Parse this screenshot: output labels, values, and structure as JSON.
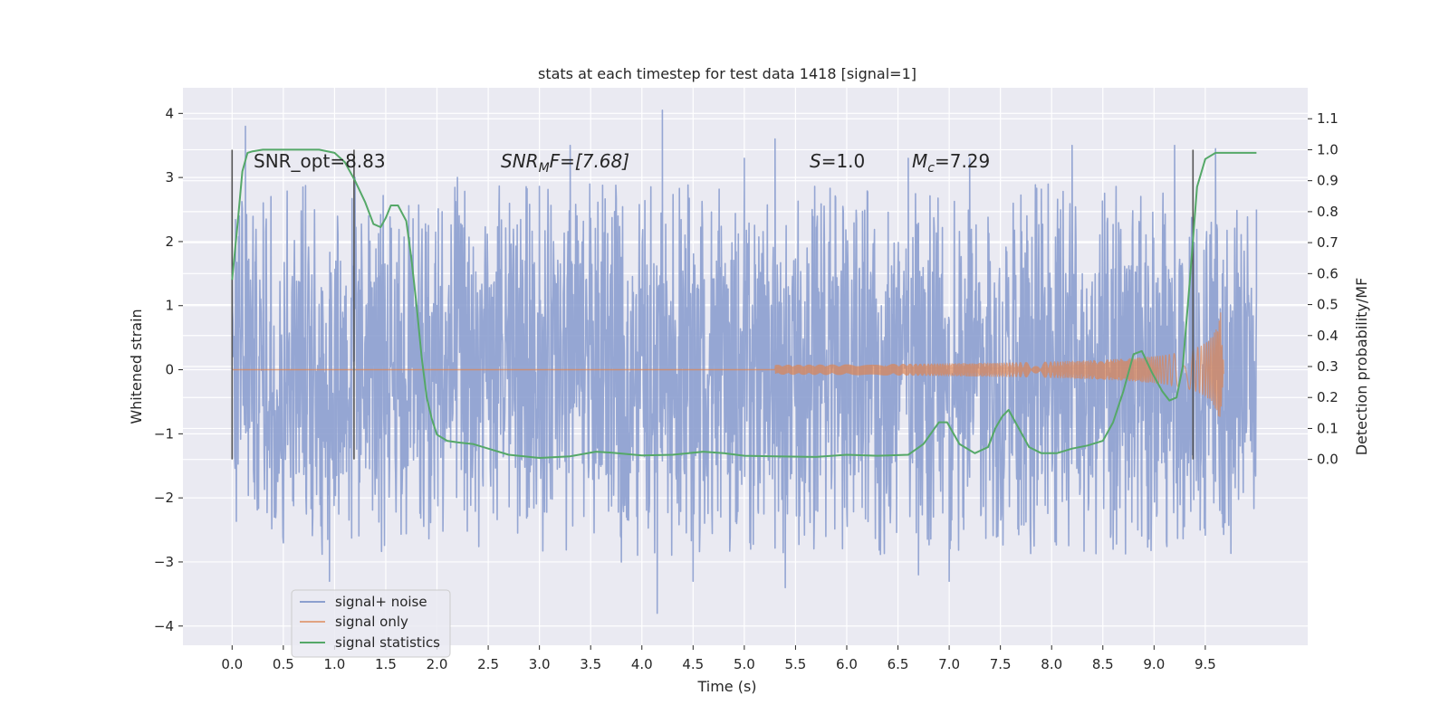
{
  "chart_data": {
    "type": "line",
    "title": "stats at each timestep for test data 1418 [signal=1]",
    "xlabel": "Time (s)",
    "ylabel": "Whitened strain",
    "ylabel_right": "Detection probability/MF",
    "xlim": [
      -0.48,
      10.5
    ],
    "ylim": [
      -4.3,
      4.4
    ],
    "ylim_right": [
      -0.6,
      1.2
    ],
    "x_ticks": [
      "0.0",
      "0.5",
      "1.0",
      "1.5",
      "2.0",
      "2.5",
      "3.0",
      "3.5",
      "4.0",
      "4.5",
      "5.0",
      "5.5",
      "6.0",
      "6.5",
      "7.0",
      "7.5",
      "8.0",
      "8.5",
      "9.0",
      "9.5"
    ],
    "y_ticks": [
      "−4",
      "−3",
      "−2",
      "−1",
      "0",
      "1",
      "2",
      "3",
      "4"
    ],
    "y_ticks_right": [
      "0.0",
      "0.1",
      "0.2",
      "0.3",
      "0.4",
      "0.5",
      "0.6",
      "0.7",
      "0.8",
      "0.9",
      "1.0",
      "1.1"
    ],
    "grid": true,
    "legend_position": "bottom-left",
    "colors": {
      "background": "#eaeaf2",
      "grid": "#ffffff",
      "noise": "#8c9fcf",
      "signal": "#dd8452",
      "stat": "#55a868",
      "vline": "#555555"
    },
    "annotations": {
      "snr_opt": "SNR_opt=8.83",
      "snr_mf_main": "SNR",
      "snr_mf_sub": "M",
      "snr_mf_rest": "F=[7.68]",
      "s_main": "S",
      "s_rest": "=1.0",
      "mc_main": "M",
      "mc_sub": "c",
      "mc_rest": "=7.29"
    },
    "vertical_lines": [
      0.0,
      1.19,
      9.38
    ],
    "series": [
      {
        "name": "signal+ noise",
        "kind": "noise",
        "x_range": [
          0.0,
          10.0
        ],
        "typical_range": [
          -1.9,
          1.9
        ],
        "peaks": [
          [
            0.13,
            3.8
          ],
          [
            0.95,
            -3.3
          ],
          [
            1.2,
            3.0
          ],
          [
            2.2,
            3.0
          ],
          [
            3.3,
            3.5
          ],
          [
            3.8,
            -3.0
          ],
          [
            4.2,
            4.05
          ],
          [
            4.15,
            -3.8
          ],
          [
            4.5,
            -3.3
          ],
          [
            5.0,
            3.3
          ],
          [
            5.3,
            3.6
          ],
          [
            5.4,
            -3.4
          ],
          [
            6.6,
            3.3
          ],
          [
            6.7,
            -3.2
          ],
          [
            7.0,
            -3.3
          ],
          [
            7.2,
            3.3
          ],
          [
            8.2,
            3.5
          ],
          [
            8.6,
            -2.8
          ],
          [
            9.2,
            3.5
          ],
          [
            9.45,
            -2.5
          ],
          [
            9.6,
            3.45
          ],
          [
            10.0,
            2.5
          ]
        ]
      },
      {
        "name": "signal only",
        "kind": "chirp",
        "x_range": [
          5.3,
          9.68
        ],
        "peak_time": 9.65,
        "peak_amplitude": 0.9
      },
      {
        "name": "signal statistics",
        "kind": "probability",
        "axis": "right",
        "x": [
          0.0,
          0.05,
          0.1,
          0.15,
          0.2,
          0.3,
          0.5,
          0.7,
          0.85,
          1.0,
          1.1,
          1.2,
          1.3,
          1.38,
          1.45,
          1.5,
          1.55,
          1.62,
          1.7,
          1.75,
          1.8,
          1.85,
          1.9,
          1.95,
          2.0,
          2.1,
          2.2,
          2.35,
          2.5,
          2.7,
          3.0,
          3.3,
          3.55,
          3.7,
          4.0,
          4.3,
          4.6,
          4.8,
          5.0,
          5.3,
          5.7,
          6.0,
          6.3,
          6.6,
          6.75,
          6.9,
          6.98,
          7.1,
          7.25,
          7.38,
          7.45,
          7.52,
          7.58,
          7.68,
          7.78,
          7.9,
          8.05,
          8.2,
          8.35,
          8.5,
          8.6,
          8.7,
          8.8,
          8.88,
          8.98,
          9.08,
          9.15,
          9.22,
          9.28,
          9.35,
          9.42,
          9.5,
          9.6,
          10.0
        ],
        "values": [
          0.58,
          0.75,
          0.93,
          0.99,
          0.995,
          1.0,
          1.0,
          1.0,
          1.0,
          0.99,
          0.96,
          0.9,
          0.83,
          0.76,
          0.75,
          0.78,
          0.82,
          0.82,
          0.77,
          0.65,
          0.5,
          0.33,
          0.2,
          0.13,
          0.08,
          0.06,
          0.055,
          0.05,
          0.035,
          0.015,
          0.005,
          0.01,
          0.025,
          0.022,
          0.013,
          0.015,
          0.025,
          0.02,
          0.012,
          0.01,
          0.008,
          0.015,
          0.012,
          0.015,
          0.05,
          0.12,
          0.12,
          0.05,
          0.02,
          0.04,
          0.1,
          0.14,
          0.16,
          0.1,
          0.04,
          0.02,
          0.02,
          0.035,
          0.045,
          0.06,
          0.12,
          0.22,
          0.34,
          0.35,
          0.28,
          0.22,
          0.19,
          0.2,
          0.3,
          0.58,
          0.88,
          0.97,
          0.99,
          0.99
        ]
      }
    ]
  }
}
